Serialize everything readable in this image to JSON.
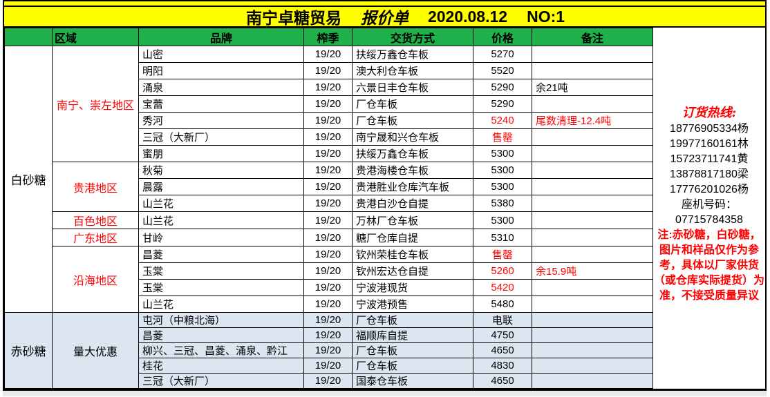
{
  "title": {
    "company": "南宁卓糖贸易",
    "doc_type": "报价单",
    "date": "2020.08.12",
    "number": "NO:1"
  },
  "header": {
    "category": "",
    "region": "区域",
    "brand": "品牌",
    "season": "榨季",
    "delivery": "交货方式",
    "price": "价格",
    "remark": "备注"
  },
  "colors": {
    "title_bg": "#FFFF00",
    "header_bg": "#21B14C",
    "red_sugar_bg": "#DCE6F1",
    "highlight_red": "#FF0000"
  },
  "sections": [
    {
      "category": "白砂糖",
      "style": "white-row",
      "groups": [
        {
          "region": "南宁、崇左地区",
          "region_red": true,
          "rows": [
            {
              "brand": "山密",
              "season": "19/20",
              "delivery": "扶绥万鑫仓车板",
              "price": "5270",
              "price_red": false,
              "remark": "",
              "remark_red": false
            },
            {
              "brand": "明阳",
              "season": "19/20",
              "delivery": "澳大利仓车板",
              "price": "5520",
              "price_red": false,
              "remark": "",
              "remark_red": false
            },
            {
              "brand": "涌泉",
              "season": "19/20",
              "delivery": "六景日丰仓车板",
              "price": "5290",
              "price_red": false,
              "remark": "余21吨",
              "remark_red": false
            },
            {
              "brand": "宝蕾",
              "season": "19/20",
              "delivery": "厂仓车板",
              "price": "5290",
              "price_red": false,
              "remark": "",
              "remark_red": false
            },
            {
              "brand": "秀河",
              "season": "19/20",
              "delivery": "厂仓车板",
              "price": "5240",
              "price_red": true,
              "remark": "尾数清理-12.4吨",
              "remark_red": true
            },
            {
              "brand": "三冠（大新厂）",
              "season": "19/20",
              "delivery": "南宁晟和兴仓车板",
              "price": "售罄",
              "price_red": true,
              "remark": "",
              "remark_red": false
            },
            {
              "brand": "蜜朋",
              "season": "19/20",
              "delivery": "扶绥万鑫仓车板",
              "price": "5300",
              "price_red": false,
              "remark": "",
              "remark_red": false
            }
          ]
        },
        {
          "region": "贵港地区",
          "region_red": true,
          "rows": [
            {
              "brand": "秋菊",
              "season": "19/20",
              "delivery": "贵港海楼仓车板",
              "price": "5300",
              "price_red": false,
              "remark": "",
              "remark_red": false
            },
            {
              "brand": "晨露",
              "season": "19/20",
              "delivery": "贵港胜业仓库汽车板",
              "price": "5300",
              "price_red": false,
              "remark": "",
              "remark_red": false
            },
            {
              "brand": "山兰花",
              "season": "19/20",
              "delivery": "贵港白沙仓自提",
              "price": "5380",
              "price_red": false,
              "remark": "",
              "remark_red": false
            }
          ]
        },
        {
          "region": "百色地区",
          "region_red": true,
          "rows": [
            {
              "brand": "山兰花",
              "season": "19/20",
              "delivery": "万林厂仓车板",
              "price": "5300",
              "price_red": false,
              "remark": "",
              "remark_red": false
            }
          ]
        },
        {
          "region": "广东地区",
          "region_red": true,
          "rows": [
            {
              "brand": "甘岭",
              "season": "19/20",
              "delivery": "糖厂仓库自提",
              "price": "5310",
              "price_red": false,
              "remark": "",
              "remark_red": false
            }
          ]
        },
        {
          "region": "沿海地区",
          "region_red": true,
          "rows": [
            {
              "brand": "昌菱",
              "season": "19/20",
              "delivery": "钦州荣桂仓车板",
              "price": "售罄",
              "price_red": true,
              "remark": "",
              "remark_red": false
            },
            {
              "brand": "玉棠",
              "season": "19/20",
              "delivery": "钦州宏达仓自提",
              "price": "5260",
              "price_red": true,
              "remark": "余15.9吨",
              "remark_red": true
            },
            {
              "brand": "玉棠",
              "season": "19/20",
              "delivery": "宁波港现货",
              "price": "5420",
              "price_red": true,
              "remark": "",
              "remark_red": false
            },
            {
              "brand": "山兰花",
              "season": "19/20",
              "delivery": "宁波港预售",
              "price": "5480",
              "price_red": false,
              "remark": "",
              "remark_red": false
            }
          ]
        }
      ]
    },
    {
      "category": "赤砂糖",
      "style": "blue-row",
      "groups": [
        {
          "region": "量大优惠",
          "region_red": false,
          "rows": [
            {
              "brand": "屯河（中粮北海）",
              "season": "19/20",
              "delivery": "厂仓车板",
              "price": "电联",
              "price_red": false,
              "remark": "",
              "remark_red": false
            },
            {
              "brand": "昌菱",
              "season": "19/20",
              "delivery": "福顺库自提",
              "price": "4750",
              "price_red": false,
              "remark": "",
              "remark_red": false
            },
            {
              "brand": "柳兴、三冠、昌菱、涌泉、黔江",
              "season": "19/20",
              "delivery": "厂仓车板",
              "price": "4650",
              "price_red": false,
              "remark": "",
              "remark_red": false
            },
            {
              "brand": "桂花",
              "season": "19/20",
              "delivery": "厂仓车板",
              "price": "4830",
              "price_red": false,
              "remark": "",
              "remark_red": false
            },
            {
              "brand": "三冠（大新厂）",
              "season": "19/20",
              "delivery": "国泰仓车板",
              "price": "4650",
              "price_red": false,
              "remark": "",
              "remark_red": false
            }
          ]
        }
      ]
    }
  ],
  "contact": {
    "hotline_label": "订货热线:",
    "phones": [
      "18776905334杨",
      "19977160161林",
      "15723711741黄",
      "13878817180梁",
      "17776201026杨"
    ],
    "landline_label": "座机号码：",
    "landline": "07715784358",
    "note_lines": [
      "注:赤砂糖，白砂糖，",
      "图片和样品仅作为参",
      "考，具体以厂家供货",
      "（或仓库实际提货）为",
      "准，不接受质量异议"
    ]
  }
}
